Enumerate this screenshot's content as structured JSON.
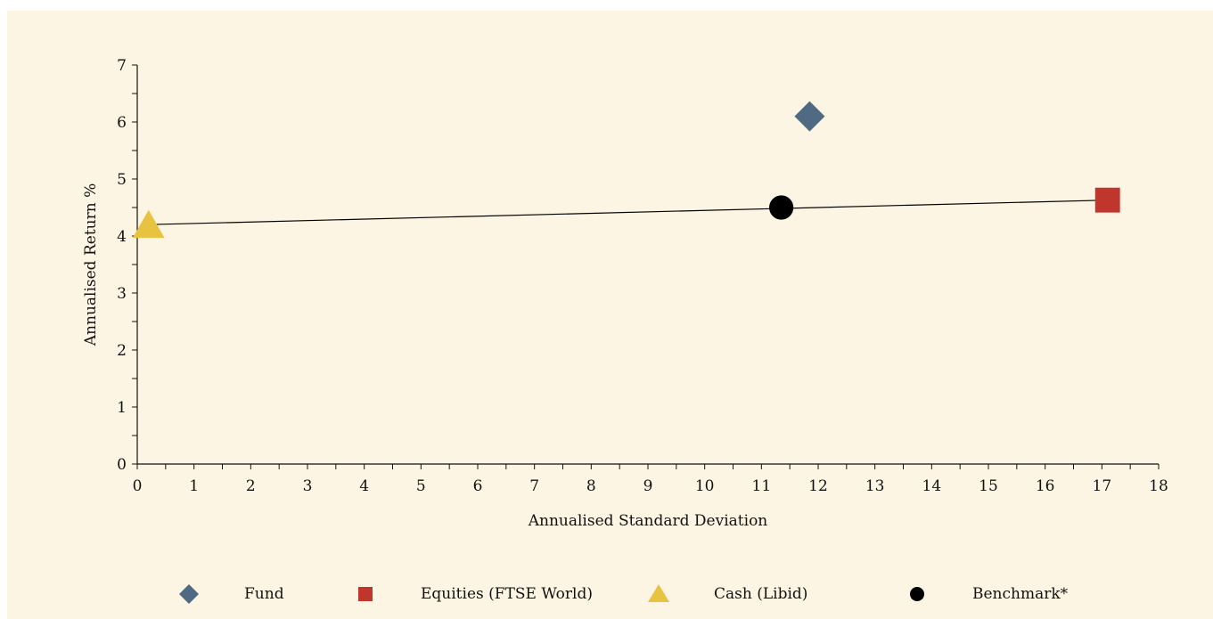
{
  "chart_data": {
    "type": "scatter",
    "xlabel": "Annualised Standard Deviation",
    "ylabel": "Annualised Return %",
    "xlim": [
      0,
      18
    ],
    "ylim": [
      0,
      7
    ],
    "x_ticks": [
      "0",
      "1",
      "2",
      "3",
      "4",
      "5",
      "6",
      "7",
      "8",
      "9",
      "10",
      "11",
      "12",
      "13",
      "14",
      "15",
      "16",
      "17",
      "18"
    ],
    "y_ticks": [
      "0",
      "1",
      "2",
      "3",
      "4",
      "5",
      "6",
      "7"
    ],
    "grid": false,
    "legend_position": "bottom",
    "series": [
      {
        "name": "Fund",
        "marker": "diamond",
        "color": "#4f6a82",
        "x": 11.85,
        "y": 6.1
      },
      {
        "name": "Equities (FTSE World)",
        "marker": "square",
        "color": "#c0362c",
        "x": 17.1,
        "y": 4.63
      },
      {
        "name": "Cash (Libid)",
        "marker": "triangle",
        "color": "#e8c341",
        "x": 0.2,
        "y": 4.18
      },
      {
        "name": "Benchmark*",
        "marker": "circle",
        "color": "#000000",
        "x": 11.35,
        "y": 4.5
      }
    ],
    "line": {
      "x": [
        0.2,
        17.1
      ],
      "y": [
        4.2,
        4.63
      ],
      "color": "#000000"
    }
  }
}
